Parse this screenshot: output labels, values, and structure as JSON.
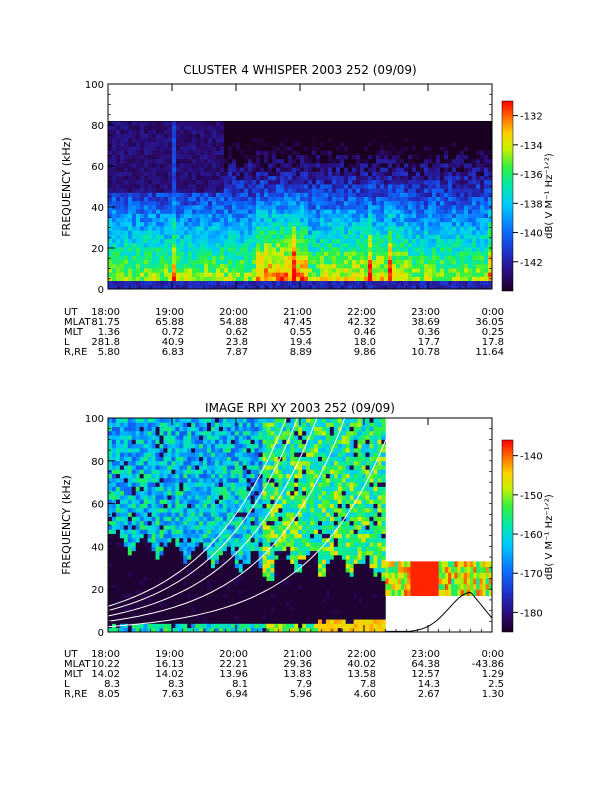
{
  "chart_data": [
    {
      "type": "heatmap",
      "title": "CLUSTER 4 WHISPER 2003 252 (09/09)",
      "ylabel": "FREQUENCY (kHz)",
      "ylim": [
        0,
        100
      ],
      "yticks": [
        0,
        20,
        40,
        60,
        80,
        100
      ],
      "x_tick_labels": [
        "18:00",
        "19:00",
        "20:00",
        "21:00",
        "22:00",
        "23:00",
        "0:00"
      ],
      "data_region": {
        "freq_max_khz": 80,
        "time_start": "18:00",
        "time_end": "0:00"
      },
      "colorbar": {
        "label": "dB( V M⁻¹ Hz⁻¹ᐟ²)",
        "range": [
          -144,
          -131
        ],
        "ticks": [
          -132,
          -134,
          -136,
          -138,
          -140,
          -142
        ],
        "tick_labels": [
          "-132",
          "-134",
          "-136",
          "-138",
          "-140",
          "-142"
        ]
      },
      "ephemeris": {
        "labels": [
          "UT",
          "MLAT",
          "MLT",
          "L",
          "R,RE"
        ],
        "rows": [
          [
            "18:00",
            "19:00",
            "20:00",
            "21:00",
            "22:00",
            "23:00",
            "0:00"
          ],
          [
            "81.75",
            "65.88",
            "54.88",
            "47.45",
            "42.32",
            "38.69",
            "36.05"
          ],
          [
            "1.36",
            "0.72",
            "0.62",
            "0.55",
            "0.46",
            "0.36",
            "0.25"
          ],
          [
            "281.8",
            "40.9",
            "23.8",
            "19.4",
            "18.0",
            "17.7",
            "17.8"
          ],
          [
            "5.80",
            "6.83",
            "7.87",
            "8.89",
            "9.86",
            "10.78",
            "11.64"
          ]
        ]
      }
    },
    {
      "type": "heatmap",
      "title": "IMAGE RPI XY 2003 252 (09/09)",
      "ylabel": "FREQUENCY (kHz)",
      "ylim": [
        0,
        100
      ],
      "yticks": [
        0,
        20,
        40,
        60,
        80,
        100
      ],
      "x_tick_labels": [
        "18:00",
        "19:00",
        "20:00",
        "21:00",
        "22:00",
        "23:00",
        "0:00"
      ],
      "data_region": {
        "freq_max_khz": 100,
        "time_start": "18:00",
        "time_end": "22:20"
      },
      "band_region": {
        "time_start": "22:20",
        "time_end": "0:00",
        "freq_low_khz": 17,
        "freq_high_khz": 33
      },
      "colorbar": {
        "label": "dB( V M⁻¹ Hz⁻¹ᐟ²)",
        "range": [
          -185,
          -136
        ],
        "ticks": [
          -140,
          -150,
          -160,
          -170,
          -180
        ],
        "tick_labels": [
          "-140",
          "-150",
          "-160",
          "-170",
          "-180"
        ]
      },
      "ephemeris": {
        "labels": [
          "UT",
          "MLAT",
          "MLT",
          "L",
          "R,RE"
        ],
        "rows": [
          [
            "18:00",
            "19:00",
            "20:00",
            "21:00",
            "22:00",
            "23:00",
            "0:00"
          ],
          [
            "10.22",
            "16.13",
            "22.21",
            "29.36",
            "40.02",
            "64.38",
            "-43.86"
          ],
          [
            "14.02",
            "14.02",
            "13.96",
            "13.83",
            "13.58",
            "12.57",
            "1.29"
          ],
          [
            "8.3",
            "8.3",
            "8.1",
            "7.9",
            "7.8",
            "14.3",
            "2.5"
          ],
          [
            "8.05",
            "7.63",
            "6.94",
            "5.96",
            "4.60",
            "2.67",
            "1.30"
          ]
        ]
      }
    }
  ]
}
